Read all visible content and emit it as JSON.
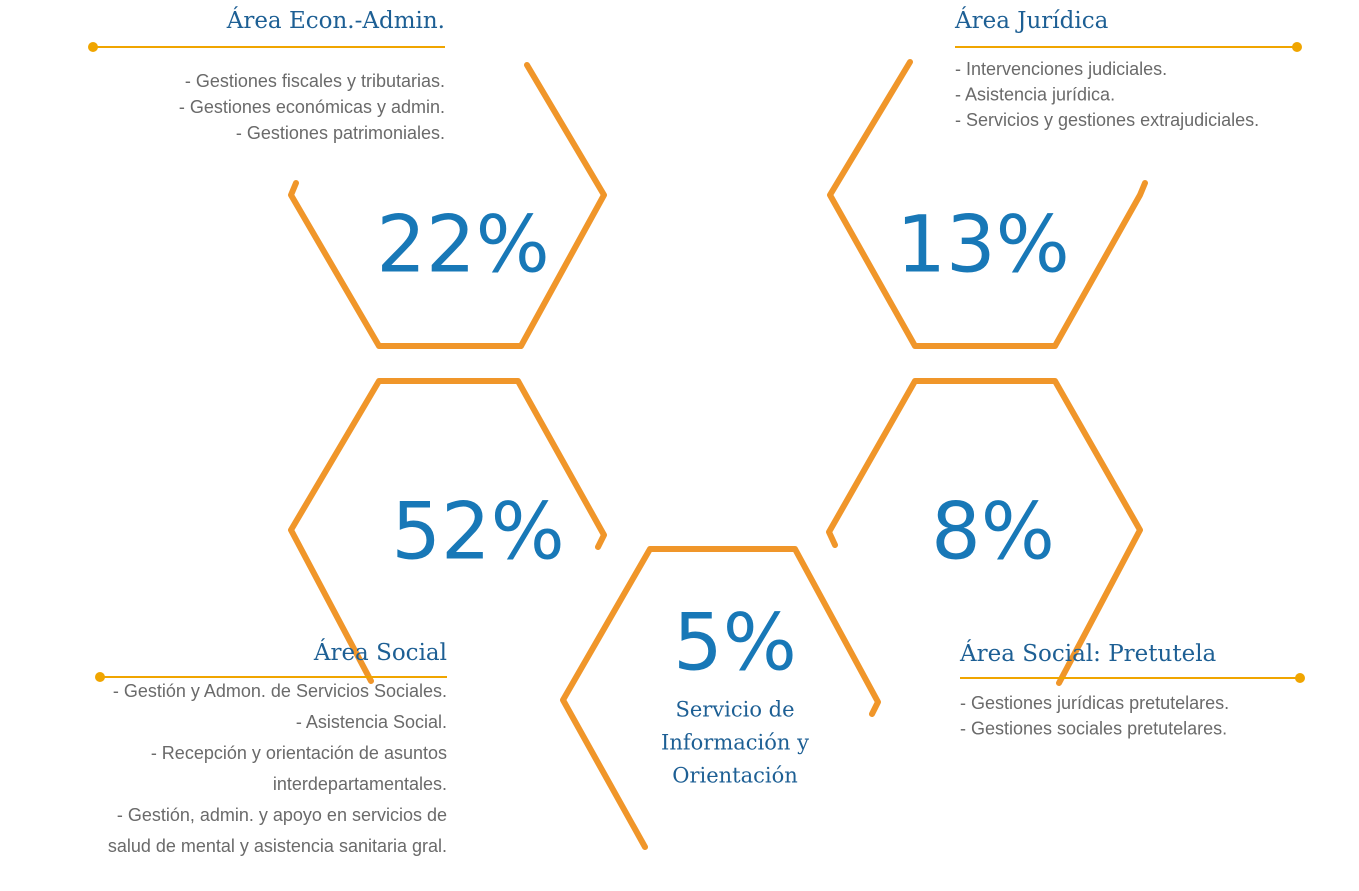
{
  "areas": [
    {
      "title": "Área Econ.-Admin.",
      "percent": "22%",
      "items": [
        "- Gestiones fiscales y tributarias.",
        "- Gestiones económicas y admin.",
        "- Gestiones patrimoniales."
      ]
    },
    {
      "title": "Área Jurídica",
      "percent": "13%",
      "items": [
        "- Intervenciones judiciales.",
        "- Asistencia jurídica.",
        "- Servicios y gestiones extrajudiciales."
      ]
    },
    {
      "title": "Área Social",
      "percent": "52%",
      "items": [
        "- Gestión y Admon. de Servicios Sociales.",
        "- Asistencia Social.",
        "- Recepción y orientación de asuntos",
        "interdepartamentales.",
        "- Gestión, admin. y apoyo en servicios de",
        "salud de mental y asistencia sanitaria gral."
      ]
    },
    {
      "title": "Área Social: Pretutela",
      "percent": "8%",
      "items": [
        "- Gestiones jurídicas pretutelares.",
        "- Gestiones sociales pretutelares."
      ]
    }
  ],
  "center": {
    "percent": "5%",
    "label_lines": [
      "Servicio de",
      "Información y",
      "Orientación"
    ]
  }
}
